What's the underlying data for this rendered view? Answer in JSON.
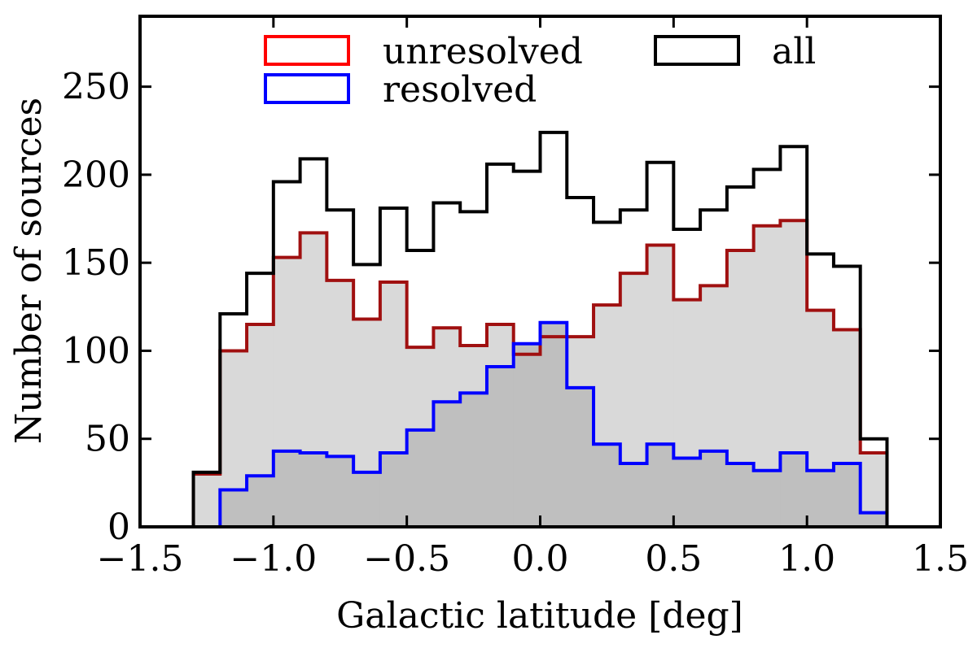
{
  "chart_data": {
    "type": "histogram",
    "xlabel": "Galactic latitude [deg]",
    "ylabel": "Number of sources",
    "xlim": [
      -1.5,
      1.5
    ],
    "ylim": [
      0,
      290
    ],
    "xticks": [
      -1.5,
      -1.0,
      -0.5,
      0.0,
      0.5,
      1.0,
      1.5
    ],
    "xtick_labels": [
      "−1.5",
      "−1.0",
      "−0.5",
      "0.0",
      "0.5",
      "1.0",
      "1.5"
    ],
    "yticks": [
      0,
      50,
      100,
      150,
      200,
      250
    ],
    "ytick_labels": [
      "0",
      "50",
      "100",
      "150",
      "200",
      "250"
    ],
    "bin_edges": [
      -1.3,
      -1.2,
      -1.1,
      -1.0,
      -0.9,
      -0.8,
      -0.7,
      -0.6,
      -0.5,
      -0.4,
      -0.3,
      -0.2,
      -0.1,
      0.0,
      0.1,
      0.2,
      0.3,
      0.4,
      0.5,
      0.6,
      0.7,
      0.8,
      0.9,
      1.0,
      1.1,
      1.2,
      1.3
    ],
    "series": [
      {
        "name": "unresolved",
        "legend_color": "#ff0000",
        "line_color": "#a01010",
        "fill": "#d9d9d9",
        "values": [
          30,
          100,
          115,
          153,
          167,
          140,
          118,
          139,
          102,
          113,
          103,
          115,
          98,
          108,
          108,
          126,
          144,
          160,
          129,
          137,
          157,
          171,
          174,
          123,
          112,
          42
        ]
      },
      {
        "name": "resolved",
        "legend_color": "#0000ff",
        "line_color": "#0000ff",
        "fill": "#bfbfbf",
        "values": [
          0,
          21,
          29,
          43,
          42,
          40,
          31,
          42,
          55,
          71,
          76,
          91,
          104,
          116,
          79,
          47,
          36,
          47,
          39,
          43,
          36,
          32,
          42,
          32,
          36,
          8
        ]
      },
      {
        "name": "all",
        "legend_color": "#000000",
        "line_color": "#000000",
        "fill": "none",
        "values": [
          31,
          121,
          144,
          196,
          209,
          180,
          149,
          181,
          157,
          184,
          179,
          206,
          202,
          224,
          187,
          173,
          180,
          207,
          169,
          180,
          193,
          203,
          216,
          155,
          148,
          50
        ]
      }
    ],
    "legend": [
      {
        "label": "unresolved",
        "color": "#ff0000"
      },
      {
        "label": "resolved",
        "color": "#0000ff"
      },
      {
        "label": "all",
        "color": "#000000"
      }
    ],
    "legend_position": "top"
  }
}
